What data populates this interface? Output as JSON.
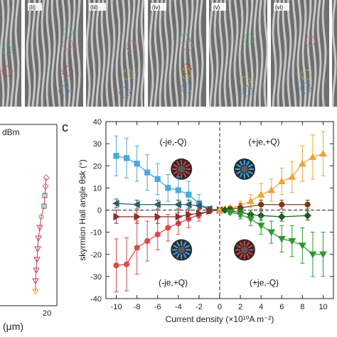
{
  "strip": {
    "panel_labels": [
      "(ii)",
      "(iii)",
      "(iv)",
      "(v)",
      "(vi)"
    ]
  },
  "panel_b": {
    "legend_text": "dBm",
    "x_ticks": [
      "20"
    ],
    "x_label": "(μm)"
  },
  "panel_c": {
    "letter": "c",
    "quadrants": {
      "top_left": "(-je,-Q)",
      "top_right": "(+je,+Q)",
      "bottom_left": "(-je,+Q)",
      "bottom_right": "(+je,-Q)"
    }
  },
  "colors": {
    "blue": "#4ba8dc",
    "red": "#dc4a4a",
    "teal": "#2f5f66",
    "darkred": "#8e2f2a",
    "orange": "#eba43a",
    "brown": "#7a3c16",
    "green": "#2c9a2c",
    "darkgreen": "#1d5e1d"
  },
  "chart_data": {
    "type": "line",
    "xlabel": "Current density (×10¹⁰A m⁻²)",
    "ylabel": "skyrmion Hall angle θsk (°)",
    "xlim": [
      -11,
      11
    ],
    "ylim": [
      -40,
      40
    ],
    "x_ticks": [
      -10,
      -8,
      -6,
      -4,
      -2,
      0,
      2,
      4,
      6,
      8,
      10
    ],
    "y_ticks": [
      -40,
      -30,
      -20,
      -10,
      0,
      10,
      20,
      30,
      40
    ],
    "zero_line": true,
    "series": [
      {
        "color_key": "blue",
        "marker": "square",
        "x": [
          -10,
          -9,
          -8,
          -7,
          -6,
          -5,
          -4,
          -3,
          -2,
          -1
        ],
        "y": [
          24.5,
          23.5,
          21,
          17,
          14,
          10,
          9,
          7,
          3,
          0.5
        ],
        "err": [
          9,
          9,
          8,
          8,
          7,
          6,
          6,
          6,
          4,
          1
        ]
      },
      {
        "color_key": "red",
        "marker": "circle",
        "x": [
          -10,
          -9,
          -8,
          -7,
          -6,
          -5,
          -4,
          -3,
          -2,
          -1
        ],
        "y": [
          -25,
          -24.5,
          -17,
          -14,
          -11,
          -8,
          -6,
          -4,
          -2,
          -0.5
        ],
        "err": [
          12,
          12,
          12,
          9,
          7,
          6,
          5,
          4,
          3,
          1
        ]
      },
      {
        "color_key": "teal",
        "marker": "triangle-left",
        "x": [
          -10,
          -8,
          -6,
          -4,
          -3,
          -2,
          -1,
          0
        ],
        "y": [
          3,
          2.5,
          2.5,
          2.5,
          2.5,
          2,
          0.5,
          0
        ],
        "err": [
          2,
          2,
          2,
          2,
          2,
          2,
          1,
          0.5
        ]
      },
      {
        "color_key": "darkred",
        "marker": "triangle-right",
        "x": [
          -10,
          -8,
          -6,
          -4,
          -3,
          -2,
          -1,
          0
        ],
        "y": [
          -3,
          -3,
          -3,
          -3,
          -2,
          -1.5,
          -0.5,
          0
        ],
        "err": [
          3,
          3,
          3,
          3,
          2,
          2,
          1,
          0.5
        ]
      },
      {
        "color_key": "orange",
        "marker": "triangle-up",
        "x": [
          0,
          0.5,
          1,
          2,
          3,
          4,
          5,
          6,
          7,
          8,
          9,
          10
        ],
        "y": [
          0,
          0.5,
          1,
          2,
          4,
          7,
          9,
          13,
          15,
          21,
          24,
          25.5
        ],
        "err": [
          0.5,
          0.5,
          1,
          2,
          3,
          5,
          5,
          6,
          7,
          8,
          10,
          10
        ]
      },
      {
        "color_key": "brown",
        "marker": "circle",
        "x": [
          1,
          2,
          4,
          6,
          8.5
        ],
        "y": [
          0.5,
          1,
          2.5,
          2.5,
          2.5
        ],
        "err": [
          1,
          2,
          2,
          2,
          2
        ]
      },
      {
        "color_key": "darkgreen",
        "marker": "diamond",
        "x": [
          0.5,
          1,
          2,
          3,
          4,
          6,
          8.5
        ],
        "y": [
          0,
          -0.5,
          -1,
          -2,
          -2.5,
          -3,
          -2.5
        ],
        "err": [
          0.5,
          1,
          2,
          2,
          2,
          2,
          2
        ]
      },
      {
        "color_key": "green",
        "marker": "triangle-down",
        "x": [
          1,
          2,
          3,
          4,
          5,
          6,
          7,
          8,
          9,
          10
        ],
        "y": [
          -1,
          -2,
          -4,
          -7,
          -10,
          -13,
          -14,
          -16,
          -20,
          -20
        ],
        "err": [
          1,
          2,
          3,
          4,
          5,
          6,
          7,
          8,
          10,
          10
        ]
      }
    ]
  }
}
